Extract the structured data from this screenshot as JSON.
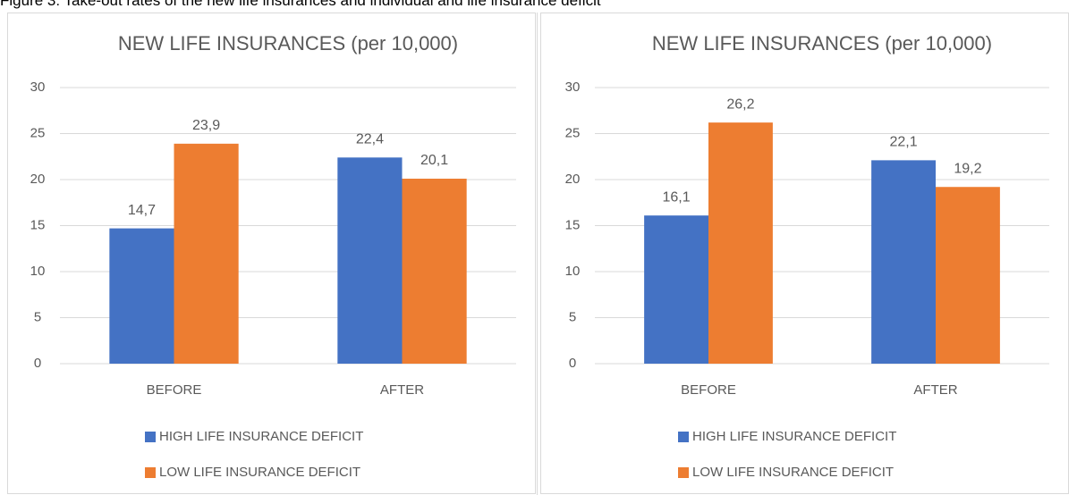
{
  "caption": "Figure 3: Take-out rates of the new life insurances and individual and life insurance deficit",
  "chart_data": [
    {
      "type": "bar",
      "title": "NEW LIFE INSURANCES (per 10,000)",
      "categories": [
        "BEFORE",
        "AFTER"
      ],
      "series": [
        {
          "name": "HIGH LIFE INSURANCE DEFICIT",
          "color": "#4472c4",
          "values": [
            14.7,
            22.4
          ],
          "value_labels": [
            "14,7",
            "22,4"
          ]
        },
        {
          "name": "LOW LIFE INSURANCE DEFICIT",
          "color": "#ed7d31",
          "values": [
            23.9,
            20.1
          ],
          "value_labels": [
            "23,9",
            "20,1"
          ]
        }
      ],
      "ylim": [
        0,
        30
      ],
      "yticks": [
        0,
        5,
        10,
        15,
        20,
        25,
        30
      ],
      "grid": true,
      "legend": "bottom"
    },
    {
      "type": "bar",
      "title": "NEW LIFE INSURANCES (per 10,000)",
      "categories": [
        "BEFORE",
        "AFTER"
      ],
      "series": [
        {
          "name": "HIGH LIFE INSURANCE DEFICIT",
          "color": "#4472c4",
          "values": [
            16.1,
            22.1
          ],
          "value_labels": [
            "16,1",
            "22,1"
          ]
        },
        {
          "name": "LOW LIFE INSURANCE DEFICIT",
          "color": "#ed7d31",
          "values": [
            26.2,
            19.2
          ],
          "value_labels": [
            "26,2",
            "19,2"
          ]
        }
      ],
      "ylim": [
        0,
        30
      ],
      "yticks": [
        0,
        5,
        10,
        15,
        20,
        25,
        30
      ],
      "grid": true,
      "legend": "bottom"
    }
  ]
}
